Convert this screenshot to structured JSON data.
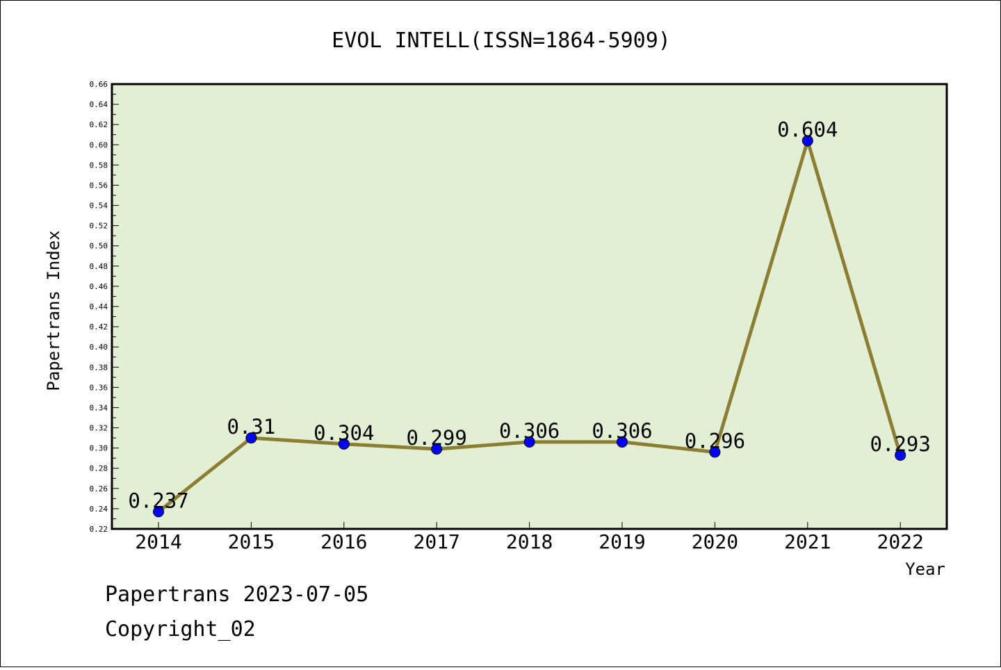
{
  "chart_data": {
    "type": "line",
    "title": "EVOL INTELL(ISSN=1864-5909)",
    "xlabel": "Year",
    "ylabel": "Papertrans Index",
    "categories": [
      "2014",
      "2015",
      "2016",
      "2017",
      "2018",
      "2019",
      "2020",
      "2021",
      "2022"
    ],
    "series": [
      {
        "values": [
          0.237,
          0.31,
          0.304,
          0.299,
          0.306,
          0.306,
          0.296,
          0.604,
          0.293
        ]
      }
    ],
    "data_labels": [
      "0.237",
      "0.31",
      "0.304",
      "0.299",
      "0.306",
      "0.306",
      "0.296",
      "0.604",
      "0.293"
    ],
    "ylim": [
      0.22,
      0.66
    ],
    "yticks": [
      "0.22",
      "0.24",
      "0.26",
      "0.28",
      "0.30",
      "0.32",
      "0.34",
      "0.36",
      "0.38",
      "0.40",
      "0.42",
      "0.44",
      "0.46",
      "0.48",
      "0.50",
      "0.52",
      "0.54",
      "0.56",
      "0.58",
      "0.60",
      "0.62",
      "0.64",
      "0.66"
    ],
    "grid": false,
    "legend": "none",
    "colors": {
      "plot_background": "#e2efd5",
      "line": "#8b7d32",
      "marker": "#0000ff"
    }
  },
  "footer": {
    "line1": "Papertrans 2023-07-05",
    "line2": "Copyright_02"
  }
}
